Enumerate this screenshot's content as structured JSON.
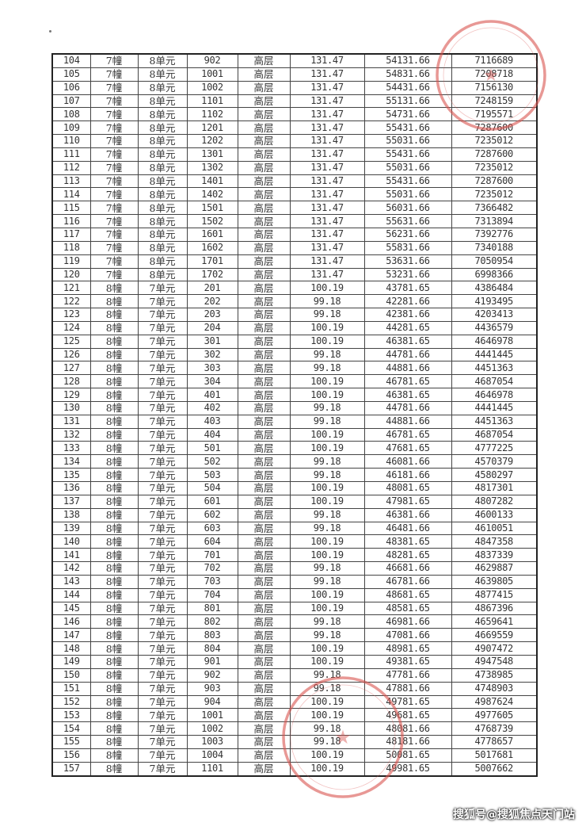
{
  "table": {
    "rows": [
      [
        "104",
        "7幢",
        "8单元",
        "902",
        "高层",
        "131.47",
        "54131.66",
        "7116689"
      ],
      [
        "105",
        "7幢",
        "8单元",
        "1001",
        "高层",
        "131.47",
        "54831.66",
        "7208718"
      ],
      [
        "106",
        "7幢",
        "8单元",
        "1002",
        "高层",
        "131.47",
        "54431.66",
        "7156130"
      ],
      [
        "107",
        "7幢",
        "8单元",
        "1101",
        "高层",
        "131.47",
        "55131.66",
        "7248159"
      ],
      [
        "108",
        "7幢",
        "8单元",
        "1102",
        "高层",
        "131.47",
        "54731.66",
        "7195571"
      ],
      [
        "109",
        "7幢",
        "8单元",
        "1201",
        "高层",
        "131.47",
        "55431.66",
        "7287600"
      ],
      [
        "110",
        "7幢",
        "8单元",
        "1202",
        "高层",
        "131.47",
        "55031.66",
        "7235012"
      ],
      [
        "111",
        "7幢",
        "8单元",
        "1301",
        "高层",
        "131.47",
        "55431.66",
        "7287600"
      ],
      [
        "112",
        "7幢",
        "8单元",
        "1302",
        "高层",
        "131.47",
        "55031.66",
        "7235012"
      ],
      [
        "113",
        "7幢",
        "8单元",
        "1401",
        "高层",
        "131.47",
        "55431.66",
        "7287600"
      ],
      [
        "114",
        "7幢",
        "8单元",
        "1402",
        "高层",
        "131.47",
        "55031.66",
        "7235012"
      ],
      [
        "115",
        "7幢",
        "8单元",
        "1501",
        "高层",
        "131.47",
        "56031.66",
        "7366482"
      ],
      [
        "116",
        "7幢",
        "8单元",
        "1502",
        "高层",
        "131.47",
        "55631.66",
        "7313894"
      ],
      [
        "117",
        "7幢",
        "8单元",
        "1601",
        "高层",
        "131.47",
        "56231.66",
        "7392776"
      ],
      [
        "118",
        "7幢",
        "8单元",
        "1602",
        "高层",
        "131.47",
        "55831.66",
        "7340188"
      ],
      [
        "119",
        "7幢",
        "8单元",
        "1701",
        "高层",
        "131.47",
        "53631.66",
        "7050954"
      ],
      [
        "120",
        "7幢",
        "8单元",
        "1702",
        "高层",
        "131.47",
        "53231.66",
        "6998366"
      ],
      [
        "121",
        "8幢",
        "7单元",
        "201",
        "高层",
        "100.19",
        "43781.65",
        "4386484"
      ],
      [
        "122",
        "8幢",
        "7单元",
        "202",
        "高层",
        "99.18",
        "42281.66",
        "4193495"
      ],
      [
        "123",
        "8幢",
        "7单元",
        "203",
        "高层",
        "99.18",
        "42381.66",
        "4203413"
      ],
      [
        "124",
        "8幢",
        "7单元",
        "204",
        "高层",
        "100.19",
        "44281.65",
        "4436579"
      ],
      [
        "125",
        "8幢",
        "7单元",
        "301",
        "高层",
        "100.19",
        "46381.65",
        "4646978"
      ],
      [
        "126",
        "8幢",
        "7单元",
        "302",
        "高层",
        "99.18",
        "44781.66",
        "4441445"
      ],
      [
        "127",
        "8幢",
        "7单元",
        "303",
        "高层",
        "99.18",
        "44881.66",
        "4451363"
      ],
      [
        "128",
        "8幢",
        "7单元",
        "304",
        "高层",
        "100.19",
        "46781.65",
        "4687054"
      ],
      [
        "129",
        "8幢",
        "7单元",
        "401",
        "高层",
        "100.19",
        "46381.65",
        "4646978"
      ],
      [
        "130",
        "8幢",
        "7单元",
        "402",
        "高层",
        "99.18",
        "44781.66",
        "4441445"
      ],
      [
        "131",
        "8幢",
        "7单元",
        "403",
        "高层",
        "99.18",
        "44881.66",
        "4451363"
      ],
      [
        "132",
        "8幢",
        "7单元",
        "404",
        "高层",
        "100.19",
        "46781.65",
        "4687054"
      ],
      [
        "133",
        "8幢",
        "7单元",
        "501",
        "高层",
        "100.19",
        "47681.65",
        "4777225"
      ],
      [
        "134",
        "8幢",
        "7单元",
        "502",
        "高层",
        "99.18",
        "46081.66",
        "4570379"
      ],
      [
        "135",
        "8幢",
        "7单元",
        "503",
        "高层",
        "99.18",
        "46181.66",
        "4580297"
      ],
      [
        "136",
        "8幢",
        "7单元",
        "504",
        "高层",
        "100.19",
        "48081.65",
        "4817301"
      ],
      [
        "137",
        "8幢",
        "7单元",
        "601",
        "高层",
        "100.19",
        "47981.65",
        "4807282"
      ],
      [
        "138",
        "8幢",
        "7单元",
        "602",
        "高层",
        "99.18",
        "46381.66",
        "4600133"
      ],
      [
        "139",
        "8幢",
        "7单元",
        "603",
        "高层",
        "99.18",
        "46481.66",
        "4610051"
      ],
      [
        "140",
        "8幢",
        "7单元",
        "604",
        "高层",
        "100.19",
        "48381.65",
        "4847358"
      ],
      [
        "141",
        "8幢",
        "7单元",
        "701",
        "高层",
        "100.19",
        "48281.65",
        "4837339"
      ],
      [
        "142",
        "8幢",
        "7单元",
        "702",
        "高层",
        "99.18",
        "46681.66",
        "4629887"
      ],
      [
        "143",
        "8幢",
        "7单元",
        "703",
        "高层",
        "99.18",
        "46781.66",
        "4639805"
      ],
      [
        "144",
        "8幢",
        "7单元",
        "704",
        "高层",
        "100.19",
        "48681.65",
        "4877415"
      ],
      [
        "145",
        "8幢",
        "7单元",
        "801",
        "高层",
        "100.19",
        "48581.65",
        "4867396"
      ],
      [
        "146",
        "8幢",
        "7单元",
        "802",
        "高层",
        "99.18",
        "46981.66",
        "4659641"
      ],
      [
        "147",
        "8幢",
        "7单元",
        "803",
        "高层",
        "99.18",
        "47081.66",
        "4669559"
      ],
      [
        "148",
        "8幢",
        "7单元",
        "804",
        "高层",
        "100.19",
        "48981.65",
        "4907472"
      ],
      [
        "149",
        "8幢",
        "7单元",
        "901",
        "高层",
        "100.19",
        "49381.65",
        "4947548"
      ],
      [
        "150",
        "8幢",
        "7单元",
        "902",
        "高层",
        "99.18",
        "47781.66",
        "4738985"
      ],
      [
        "151",
        "8幢",
        "7单元",
        "903",
        "高层",
        "99.18",
        "47881.66",
        "4748903"
      ],
      [
        "152",
        "8幢",
        "7单元",
        "904",
        "高层",
        "100.19",
        "49781.65",
        "4987624"
      ],
      [
        "153",
        "8幢",
        "7单元",
        "1001",
        "高层",
        "100.19",
        "49681.65",
        "4977605"
      ],
      [
        "154",
        "8幢",
        "7单元",
        "1002",
        "高层",
        "99.18",
        "48081.66",
        "4768739"
      ],
      [
        "155",
        "8幢",
        "7单元",
        "1003",
        "高层",
        "99.18",
        "48181.66",
        "4778657"
      ],
      [
        "156",
        "8幢",
        "7单元",
        "1004",
        "高层",
        "100.19",
        "50081.65",
        "5017681"
      ],
      [
        "157",
        "8幢",
        "7单元",
        "1101",
        "高层",
        "100.19",
        "49981.65",
        "5007662"
      ]
    ]
  },
  "stamp_color": "#d9534f",
  "watermark": "搜狐号@搜狐焦点天门站"
}
